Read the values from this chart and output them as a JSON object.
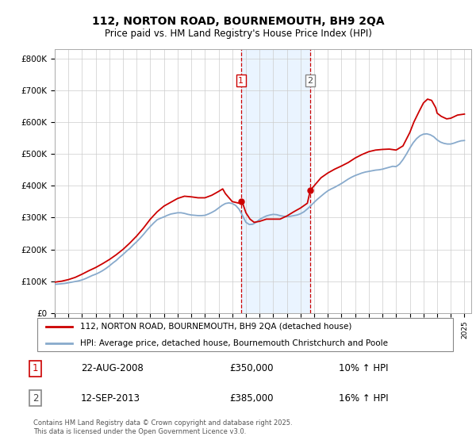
{
  "title": "112, NORTON ROAD, BOURNEMOUTH, BH9 2QA",
  "subtitle": "Price paid vs. HM Land Registry's House Price Index (HPI)",
  "ylabel_ticks": [
    "£0",
    "£100K",
    "£200K",
    "£300K",
    "£400K",
    "£500K",
    "£600K",
    "£700K",
    "£800K"
  ],
  "ytick_values": [
    0,
    100000,
    200000,
    300000,
    400000,
    500000,
    600000,
    700000,
    800000
  ],
  "ylim": [
    0,
    830000
  ],
  "xlim_start": 1995.0,
  "xlim_end": 2025.5,
  "sale1": {
    "label": "1",
    "date": "22-AUG-2008",
    "price": 350000,
    "hpi_change": "10% ↑ HPI",
    "x": 2008.64
  },
  "sale2": {
    "label": "2",
    "date": "12-SEP-2013",
    "price": 385000,
    "hpi_change": "16% ↑ HPI",
    "x": 2013.71
  },
  "legend_line1": "112, NORTON ROAD, BOURNEMOUTH, BH9 2QA (detached house)",
  "legend_line2": "HPI: Average price, detached house, Bournemouth Christchurch and Poole",
  "footer": "Contains HM Land Registry data © Crown copyright and database right 2025.\nThis data is licensed under the Open Government Licence v3.0.",
  "line_color_red": "#cc0000",
  "line_color_blue": "#88aacc",
  "shade_color": "#ddeeff",
  "vline_color": "#cc0000",
  "background_color": "#ffffff",
  "hpi_data": {
    "years": [
      1995.0,
      1995.25,
      1995.5,
      1995.75,
      1996.0,
      1996.25,
      1996.5,
      1996.75,
      1997.0,
      1997.25,
      1997.5,
      1997.75,
      1998.0,
      1998.25,
      1998.5,
      1998.75,
      1999.0,
      1999.25,
      1999.5,
      1999.75,
      2000.0,
      2000.25,
      2000.5,
      2000.75,
      2001.0,
      2001.25,
      2001.5,
      2001.75,
      2002.0,
      2002.25,
      2002.5,
      2002.75,
      2003.0,
      2003.25,
      2003.5,
      2003.75,
      2004.0,
      2004.25,
      2004.5,
      2004.75,
      2005.0,
      2005.25,
      2005.5,
      2005.75,
      2006.0,
      2006.25,
      2006.5,
      2006.75,
      2007.0,
      2007.25,
      2007.5,
      2007.75,
      2008.0,
      2008.25,
      2008.5,
      2008.75,
      2009.0,
      2009.25,
      2009.5,
      2009.75,
      2010.0,
      2010.25,
      2010.5,
      2010.75,
      2011.0,
      2011.25,
      2011.5,
      2011.75,
      2012.0,
      2012.25,
      2012.5,
      2012.75,
      2013.0,
      2013.25,
      2013.5,
      2013.75,
      2014.0,
      2014.25,
      2014.5,
      2014.75,
      2015.0,
      2015.25,
      2015.5,
      2015.75,
      2016.0,
      2016.25,
      2016.5,
      2016.75,
      2017.0,
      2017.25,
      2017.5,
      2017.75,
      2018.0,
      2018.25,
      2018.5,
      2018.75,
      2019.0,
      2019.25,
      2019.5,
      2019.75,
      2020.0,
      2020.25,
      2020.5,
      2020.75,
      2021.0,
      2021.25,
      2021.5,
      2021.75,
      2022.0,
      2022.25,
      2022.5,
      2022.75,
      2023.0,
      2023.25,
      2023.5,
      2023.75,
      2024.0,
      2024.25,
      2024.5,
      2024.75,
      2025.0
    ],
    "values": [
      90000,
      91000,
      92000,
      93000,
      95000,
      97000,
      99000,
      101000,
      104000,
      108000,
      113000,
      118000,
      122000,
      127000,
      133000,
      140000,
      148000,
      157000,
      165000,
      175000,
      184000,
      194000,
      203000,
      214000,
      224000,
      235000,
      247000,
      260000,
      272000,
      283000,
      293000,
      298000,
      302000,
      307000,
      311000,
      313000,
      315000,
      315000,
      313000,
      310000,
      308000,
      307000,
      306000,
      306000,
      307000,
      311000,
      316000,
      322000,
      330000,
      338000,
      344000,
      346000,
      344000,
      338000,
      326000,
      306000,
      285000,
      278000,
      279000,
      285000,
      294000,
      300000,
      305000,
      308000,
      310000,
      309000,
      306000,
      304000,
      303000,
      304000,
      306000,
      308000,
      312000,
      318000,
      327000,
      337000,
      348000,
      358000,
      367000,
      376000,
      384000,
      390000,
      395000,
      401000,
      407000,
      414000,
      421000,
      427000,
      432000,
      436000,
      440000,
      443000,
      445000,
      447000,
      449000,
      450000,
      452000,
      455000,
      458000,
      461000,
      460000,
      468000,
      482000,
      499000,
      518000,
      535000,
      548000,
      557000,
      562000,
      563000,
      560000,
      554000,
      544000,
      537000,
      533000,
      531000,
      531000,
      534000,
      538000,
      541000,
      542000
    ]
  },
  "price_data": {
    "years": [
      1995.0,
      1995.5,
      1996.0,
      1996.5,
      1997.0,
      1997.5,
      1998.0,
      1998.5,
      1999.0,
      1999.5,
      2000.0,
      2000.5,
      2001.0,
      2001.5,
      2002.0,
      2002.5,
      2003.0,
      2003.5,
      2004.0,
      2004.5,
      2005.0,
      2005.5,
      2006.0,
      2006.5,
      2007.0,
      2007.3,
      2007.5,
      2008.0,
      2008.5,
      2008.64,
      2008.8,
      2009.0,
      2009.3,
      2009.6,
      2010.0,
      2010.5,
      2011.0,
      2011.5,
      2012.0,
      2012.5,
      2013.0,
      2013.5,
      2013.71,
      2014.0,
      2014.5,
      2015.0,
      2015.5,
      2016.0,
      2016.5,
      2017.0,
      2017.5,
      2018.0,
      2018.5,
      2019.0,
      2019.5,
      2020.0,
      2020.5,
      2021.0,
      2021.3,
      2021.7,
      2022.0,
      2022.3,
      2022.6,
      2022.9,
      2023.0,
      2023.3,
      2023.7,
      2024.0,
      2024.5,
      2025.0
    ],
    "values": [
      97000,
      100000,
      105000,
      112000,
      122000,
      133000,
      143000,
      155000,
      168000,
      183000,
      200000,
      220000,
      242000,
      267000,
      295000,
      318000,
      336000,
      348000,
      360000,
      367000,
      365000,
      362000,
      362000,
      370000,
      382000,
      390000,
      375000,
      350000,
      345000,
      350000,
      340000,
      315000,
      295000,
      285000,
      288000,
      295000,
      295000,
      295000,
      305000,
      318000,
      330000,
      345000,
      385000,
      400000,
      425000,
      440000,
      452000,
      462000,
      473000,
      487000,
      498000,
      507000,
      512000,
      514000,
      515000,
      512000,
      525000,
      567000,
      600000,
      635000,
      660000,
      672000,
      668000,
      645000,
      628000,
      618000,
      610000,
      612000,
      622000,
      625000
    ]
  }
}
